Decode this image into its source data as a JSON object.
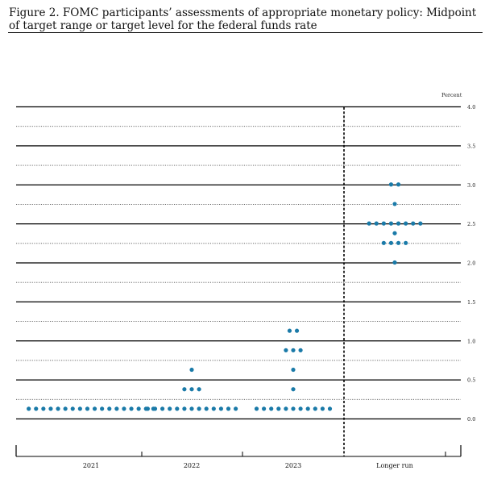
{
  "figure": {
    "title": "Figure 2.  FOMC participants’ assessments of appropriate monetary policy: Midpoint of target range or target level for the federal funds rate"
  },
  "chart_data": {
    "type": "scatter",
    "y_unit_label": "Percent",
    "ylim": [
      0.0,
      4.0
    ],
    "y_ticks": [
      "0.0",
      "0.5",
      "1.0",
      "1.5",
      "2.0",
      "2.5",
      "3.0",
      "3.5",
      "4.0"
    ],
    "y_minor_step": 0.25,
    "grid": true,
    "dot_color": "#1a7aa8",
    "categories": [
      "2021",
      "2022",
      "2023",
      "Longer run"
    ],
    "counts": [
      [
        {
          "y": 0.125,
          "n": 18
        }
      ],
      [
        {
          "y": 0.125,
          "n": 13
        },
        {
          "y": 0.375,
          "n": 3
        },
        {
          "y": 0.625,
          "n": 1
        }
      ],
      [
        {
          "y": 0.125,
          "n": 11
        },
        {
          "y": 0.375,
          "n": 1
        },
        {
          "y": 0.625,
          "n": 1
        },
        {
          "y": 0.875,
          "n": 3
        },
        {
          "y": 1.125,
          "n": 2
        }
      ],
      [
        {
          "y": 2.0,
          "n": 1
        },
        {
          "y": 2.25,
          "n": 4
        },
        {
          "y": 2.375,
          "n": 1
        },
        {
          "y": 2.5,
          "n": 8
        },
        {
          "y": 2.75,
          "n": 1
        },
        {
          "y": 3.0,
          "n": 2
        }
      ]
    ]
  }
}
